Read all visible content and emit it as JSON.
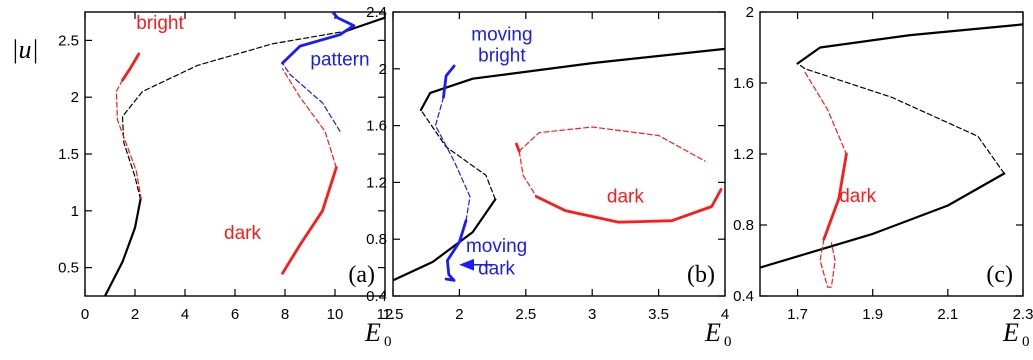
{
  "colors": {
    "black": "#000000",
    "red": "#ff1a1a",
    "blue": "#1a1aff"
  },
  "chart_data": [
    {
      "type": "line",
      "panel_label": "(a)",
      "ylabel": "|u|",
      "xlabel": "E",
      "xlabel_sub": "0",
      "xlim": [
        0,
        12
      ],
      "ylim": [
        0.25,
        2.75
      ],
      "xticks": [
        0,
        2,
        4,
        6,
        8,
        10,
        12
      ],
      "xtick_labels": [
        "0",
        "2",
        "4",
        "6",
        "8",
        "10",
        "12"
      ],
      "yticks": [
        0.5,
        1,
        1.5,
        2,
        2.5
      ],
      "ytick_labels": [
        "0.5",
        "1",
        "1.5",
        "2",
        "2.5"
      ],
      "annotations": [
        {
          "text": "bright",
          "color": "red",
          "at": [
            3.0,
            2.6
          ]
        },
        {
          "text": "pattern",
          "color": "blue",
          "at": [
            10.2,
            2.28
          ]
        },
        {
          "text": "dark",
          "color": "red",
          "at": [
            6.3,
            0.75
          ]
        }
      ],
      "series": [
        {
          "color": "black",
          "dash": false,
          "width": 2.2,
          "points": [
            [
              0.8,
              0.25
            ],
            [
              1.5,
              0.55
            ],
            [
              2.0,
              0.85
            ],
            [
              2.22,
              1.1
            ]
          ]
        },
        {
          "color": "black",
          "dash": true,
          "width": 1.2,
          "points": [
            [
              2.22,
              1.1
            ],
            [
              2.0,
              1.3
            ],
            [
              1.55,
              1.6
            ],
            [
              1.5,
              1.83
            ],
            [
              2.3,
              2.05
            ],
            [
              4.5,
              2.28
            ],
            [
              7.5,
              2.47
            ],
            [
              10.4,
              2.58
            ]
          ]
        },
        {
          "color": "black",
          "dash": false,
          "width": 2.2,
          "points": [
            [
              10.4,
              2.58
            ],
            [
              11.2,
              2.64
            ],
            [
              12,
              2.7
            ]
          ]
        },
        {
          "color": "red",
          "dash": true,
          "width": 1.2,
          "points": [
            [
              2.25,
              1.1
            ],
            [
              2.05,
              1.35
            ],
            [
              1.55,
              1.65
            ],
            [
              1.3,
              1.8
            ],
            [
              1.25,
              2.05
            ],
            [
              1.5,
              2.15
            ]
          ]
        },
        {
          "color": "red",
          "dash": false,
          "width": 2.8,
          "points": [
            [
              1.5,
              2.15
            ],
            [
              1.8,
              2.25
            ],
            [
              2.15,
              2.38
            ]
          ]
        },
        {
          "color": "red",
          "dash": false,
          "width": 2.8,
          "points": [
            [
              7.9,
              0.45
            ],
            [
              8.6,
              0.7
            ],
            [
              9.5,
              1.0
            ],
            [
              10.05,
              1.38
            ]
          ]
        },
        {
          "color": "red",
          "dash": true,
          "width": 1.2,
          "points": [
            [
              10.05,
              1.38
            ],
            [
              9.6,
              1.7
            ],
            [
              8.6,
              2.0
            ],
            [
              7.9,
              2.25
            ]
          ]
        },
        {
          "color": "blue",
          "dash": true,
          "width": 1.2,
          "points": [
            [
              10.2,
              1.7
            ],
            [
              9.5,
              1.95
            ],
            [
              8.2,
              2.2
            ],
            [
              7.9,
              2.3
            ]
          ]
        },
        {
          "color": "blue",
          "dash": false,
          "width": 2.8,
          "points": [
            [
              7.9,
              2.3
            ],
            [
              8.6,
              2.45
            ],
            [
              10.2,
              2.55
            ],
            [
              10.75,
              2.63
            ],
            [
              10.1,
              2.7
            ],
            [
              9.9,
              2.75
            ]
          ]
        }
      ]
    },
    {
      "type": "line",
      "panel_label": "(b)",
      "ylabel": "",
      "xlabel": "E",
      "xlabel_sub": "0",
      "xlim": [
        1.5,
        4
      ],
      "ylim": [
        0.4,
        2.4
      ],
      "xticks": [
        1.5,
        2,
        2.5,
        3,
        3.5,
        4
      ],
      "xtick_labels": [
        "1.5",
        "2",
        "2.5",
        "3",
        "3.5",
        "4"
      ],
      "yticks": [
        0.4,
        0.8,
        1.2,
        1.6,
        2,
        2.4
      ],
      "ytick_labels": [
        "0.4",
        "0.8",
        "1.2",
        "1.6",
        "2",
        "2.4"
      ],
      "annotations": [
        {
          "text": "moving",
          "color": "blue",
          "at": [
            2.32,
            2.2
          ]
        },
        {
          "text": "bright",
          "color": "blue",
          "at": [
            2.32,
            2.05
          ]
        },
        {
          "text": "dark",
          "color": "red",
          "at": [
            3.25,
            1.06
          ]
        },
        {
          "text": "moving",
          "color": "blue",
          "at": [
            2.28,
            0.71
          ]
        },
        {
          "text": "dark",
          "color": "blue",
          "at": [
            2.28,
            0.55
          ]
        }
      ],
      "arrow": {
        "color": "blue",
        "from": [
          2.25,
          0.62
        ],
        "to": [
          2.01,
          0.62
        ]
      },
      "series": [
        {
          "color": "black",
          "dash": false,
          "width": 2.2,
          "points": [
            [
              1.5,
              0.51
            ],
            [
              1.8,
              0.64
            ],
            [
              2.1,
              0.85
            ],
            [
              2.27,
              1.08
            ]
          ]
        },
        {
          "color": "black",
          "dash": true,
          "width": 1.2,
          "points": [
            [
              2.27,
              1.08
            ],
            [
              2.2,
              1.25
            ],
            [
              1.9,
              1.45
            ],
            [
              1.71,
              1.71
            ]
          ]
        },
        {
          "color": "black",
          "dash": false,
          "width": 2.2,
          "points": [
            [
              1.71,
              1.71
            ],
            [
              1.78,
              1.83
            ],
            [
              2.1,
              1.93
            ],
            [
              3.0,
              2.04
            ],
            [
              4.0,
              2.14
            ]
          ]
        },
        {
          "color": "blue",
          "dash": false,
          "width": 2.8,
          "points": [
            [
              1.9,
              0.52
            ],
            [
              1.96,
              0.51
            ],
            [
              1.92,
              0.55
            ],
            [
              1.91,
              0.65
            ],
            [
              2.0,
              0.78
            ],
            [
              2.05,
              0.93
            ]
          ]
        },
        {
          "color": "blue",
          "dash": true,
          "width": 1.2,
          "points": [
            [
              2.05,
              0.93
            ],
            [
              2.08,
              1.1
            ],
            [
              1.96,
              1.35
            ],
            [
              1.82,
              1.6
            ],
            [
              1.88,
              1.8
            ]
          ]
        },
        {
          "color": "blue",
          "dash": false,
          "width": 2.8,
          "points": [
            [
              1.88,
              1.8
            ],
            [
              1.9,
              1.95
            ],
            [
              1.96,
              2.02
            ]
          ]
        },
        {
          "color": "red",
          "dash": false,
          "width": 2.8,
          "points": [
            [
              2.43,
              1.47
            ],
            [
              2.45,
              1.42
            ]
          ]
        },
        {
          "color": "red",
          "dash": true,
          "width": 1.2,
          "points": [
            [
              2.45,
              1.42
            ],
            [
              2.6,
              1.55
            ],
            [
              3.0,
              1.59
            ],
            [
              3.5,
              1.53
            ],
            [
              3.85,
              1.35
            ]
          ]
        },
        {
          "color": "red",
          "dash": false,
          "width": 2.8,
          "points": [
            [
              2.58,
              1.1
            ],
            [
              2.8,
              1.0
            ],
            [
              3.2,
              0.92
            ],
            [
              3.6,
              0.93
            ],
            [
              3.9,
              1.03
            ],
            [
              3.97,
              1.15
            ]
          ]
        },
        {
          "color": "red",
          "dash": true,
          "width": 1.2,
          "points": [
            [
              2.45,
              1.42
            ],
            [
              2.48,
              1.25
            ],
            [
              2.58,
              1.1
            ]
          ]
        }
      ]
    },
    {
      "type": "line",
      "panel_label": "(c)",
      "ylabel": "",
      "xlabel": "E",
      "xlabel_sub": "0",
      "xlim": [
        1.6,
        2.3
      ],
      "ylim": [
        0.4,
        2.0
      ],
      "xticks": [
        1.7,
        1.9,
        2.1,
        2.3
      ],
      "xtick_labels": [
        "1.7",
        "1.9",
        "2.1",
        "2.3"
      ],
      "yticks": [
        0.4,
        0.8,
        1.2,
        1.6,
        2
      ],
      "ytick_labels": [
        "0.4",
        "0.8",
        "1.2",
        "1.6",
        "2"
      ],
      "annotations": [
        {
          "text": "dark",
          "color": "red",
          "at": [
            1.86,
            0.93
          ]
        }
      ],
      "series": [
        {
          "color": "black",
          "dash": false,
          "width": 2.2,
          "points": [
            [
              1.6,
              0.56
            ],
            [
              1.9,
              0.75
            ],
            [
              2.1,
              0.91
            ],
            [
              2.25,
              1.09
            ]
          ]
        },
        {
          "color": "black",
          "dash": true,
          "width": 1.2,
          "points": [
            [
              2.25,
              1.09
            ],
            [
              2.18,
              1.3
            ],
            [
              1.95,
              1.52
            ],
            [
              1.72,
              1.68
            ],
            [
              1.7,
              1.71
            ]
          ]
        },
        {
          "color": "black",
          "dash": false,
          "width": 2.2,
          "points": [
            [
              1.7,
              1.71
            ],
            [
              1.76,
              1.8
            ],
            [
              2.0,
              1.87
            ],
            [
              2.3,
              1.93
            ]
          ]
        },
        {
          "color": "red",
          "dash": true,
          "width": 1.2,
          "points": [
            [
              1.72,
              1.66
            ],
            [
              1.78,
              1.45
            ],
            [
              1.83,
              1.2
            ]
          ]
        },
        {
          "color": "red",
          "dash": false,
          "width": 2.8,
          "points": [
            [
              1.83,
              1.2
            ],
            [
              1.81,
              0.95
            ],
            [
              1.77,
              0.72
            ]
          ]
        },
        {
          "color": "red",
          "dash": true,
          "width": 1.2,
          "points": [
            [
              1.77,
              0.72
            ],
            [
              1.76,
              0.6
            ],
            [
              1.78,
              0.45
            ],
            [
              1.79,
              0.45
            ],
            [
              1.8,
              0.6
            ],
            [
              1.79,
              0.7
            ]
          ]
        }
      ]
    }
  ]
}
